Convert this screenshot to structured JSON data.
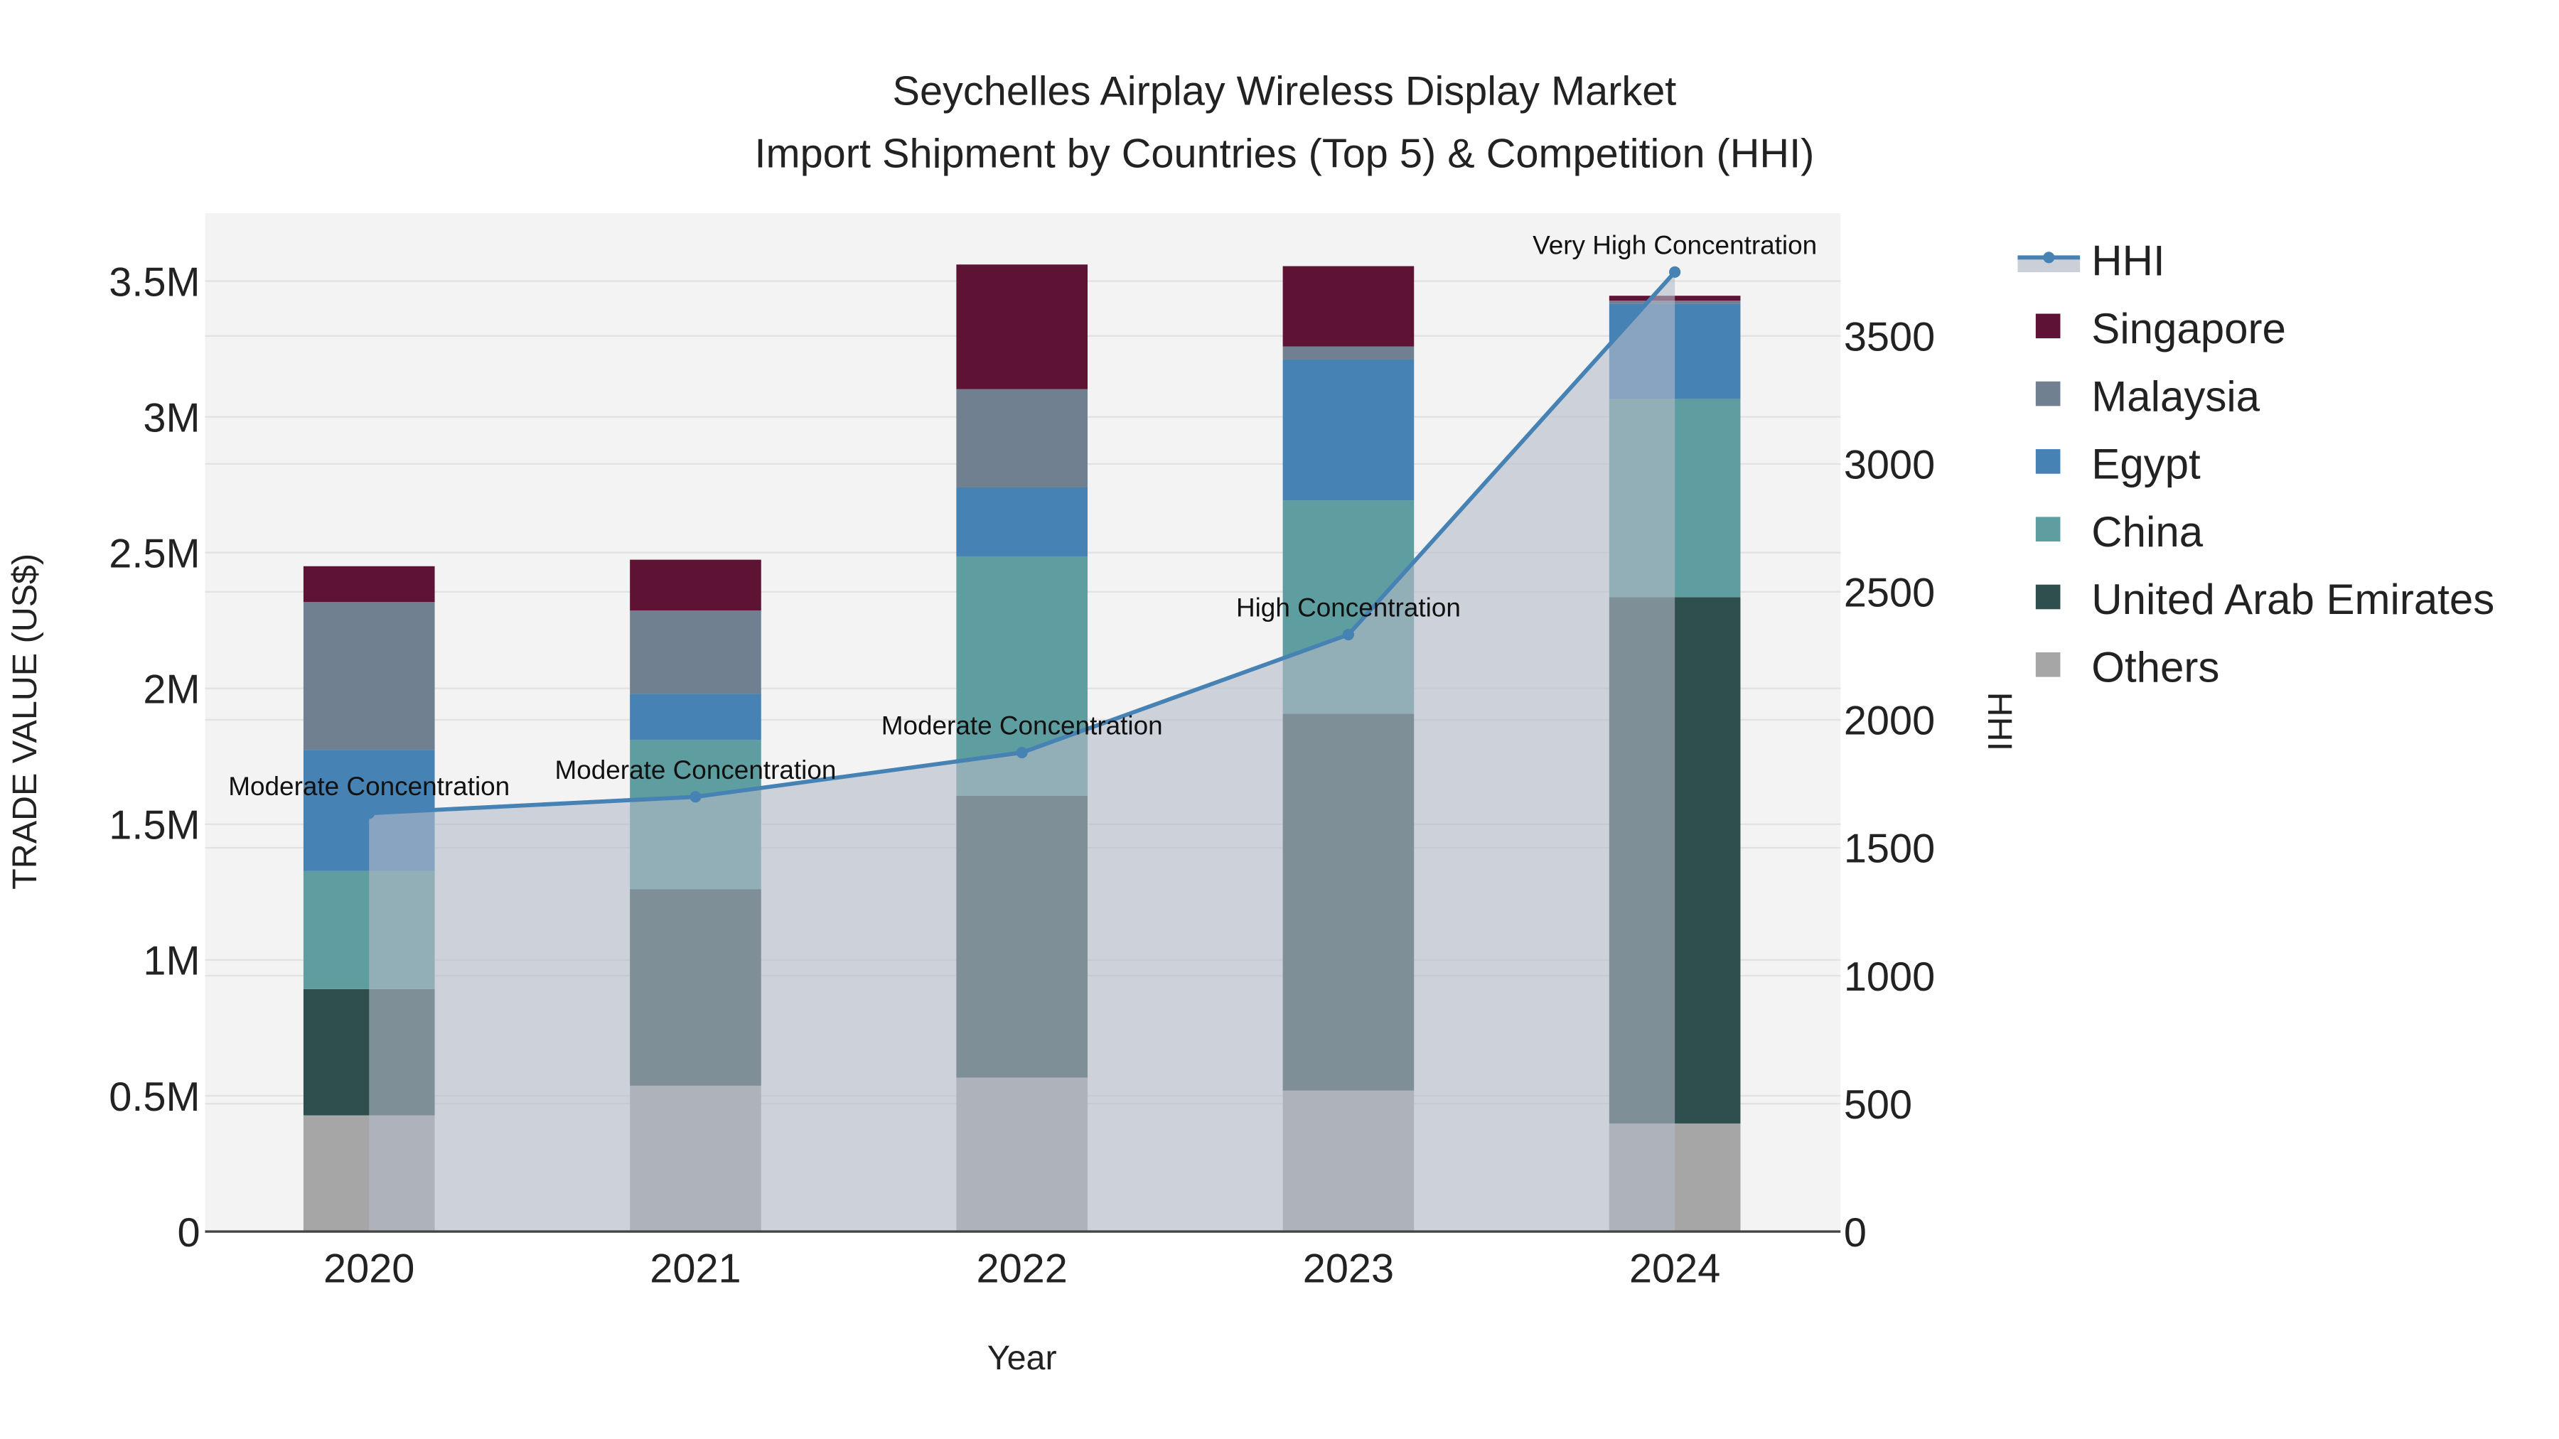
{
  "chart_data": {
    "type": "bar",
    "title": "Seychelles Airplay Wireless Display Market",
    "subtitle": "Import Shipment by Countries (Top 5) & Competition (HHI)",
    "xlabel": "Year",
    "ylabel": "TRADE VALUE (US$)",
    "y2label": "HHI",
    "categories": [
      "2020",
      "2021",
      "2022",
      "2023",
      "2024"
    ],
    "ylim": [
      0,
      3750000
    ],
    "y2lim": [
      0,
      3980
    ],
    "yticks": [
      {
        "v": 0,
        "label": "0"
      },
      {
        "v": 500000,
        "label": "0.5M"
      },
      {
        "v": 1000000,
        "label": "1M"
      },
      {
        "v": 1500000,
        "label": "1.5M"
      },
      {
        "v": 2000000,
        "label": "2M"
      },
      {
        "v": 2500000,
        "label": "2.5M"
      },
      {
        "v": 3000000,
        "label": "3M"
      },
      {
        "v": 3500000,
        "label": "3.5M"
      }
    ],
    "y2ticks": [
      {
        "v": 0,
        "label": "0"
      },
      {
        "v": 500,
        "label": "500"
      },
      {
        "v": 1000,
        "label": "1000"
      },
      {
        "v": 1500,
        "label": "1500"
      },
      {
        "v": 2000,
        "label": "2000"
      },
      {
        "v": 2500,
        "label": "2500"
      },
      {
        "v": 3000,
        "label": "3000"
      },
      {
        "v": 3500,
        "label": "3500"
      }
    ],
    "series": [
      {
        "name": "Others",
        "color": "#a6a6a6",
        "values": [
          428000,
          537000,
          567000,
          519000,
          398000
        ]
      },
      {
        "name": "United Arab Emirates",
        "color": "#2f4f4f",
        "values": [
          465000,
          724000,
          1038000,
          1388000,
          1938000
        ]
      },
      {
        "name": "China",
        "color": "#5f9ea0",
        "values": [
          435000,
          549000,
          881000,
          785000,
          730000
        ]
      },
      {
        "name": "Egypt",
        "color": "#4682b4",
        "values": [
          446000,
          170000,
          254000,
          519000,
          350000
        ]
      },
      {
        "name": "Malaysia",
        "color": "#708090",
        "values": [
          544000,
          307000,
          362000,
          48000,
          12000
        ]
      },
      {
        "name": "Singapore",
        "color": "#5f1334",
        "values": [
          132000,
          187000,
          459000,
          296000,
          18000
        ]
      }
    ],
    "hhi": {
      "name": "HHI",
      "color": "#4682b4",
      "values": [
        1635,
        1699,
        1872,
        2333,
        3750
      ],
      "labels": [
        "Moderate Concentration",
        "Moderate Concentration",
        "Moderate Concentration",
        "High Concentration",
        "Very High Concentration"
      ]
    },
    "legend_order": [
      "HHI",
      "Singapore",
      "Malaysia",
      "Egypt",
      "China",
      "United Arab Emirates",
      "Others"
    ],
    "legend_placement": "right",
    "grid": true
  }
}
